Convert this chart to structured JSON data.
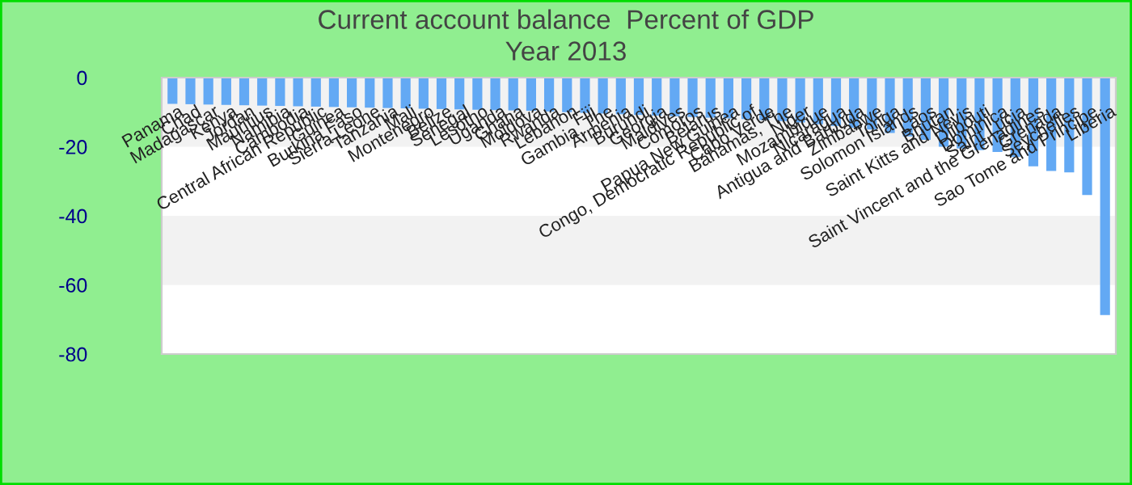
{
  "chart_data": {
    "type": "bar",
    "title": "Current account balance  Percent of GDP",
    "subtitle": "Year 2013",
    "categories": [
      "Panama",
      "Chad",
      "Madagascar",
      "Kenya",
      "Jordan",
      "Mauritius",
      "Namibia",
      "Cambodia",
      "Central African Republic",
      "Guinea",
      "Burkina Faso",
      "Sierra Leone",
      "Tanzania",
      "Mali",
      "Montenegro",
      "Belize",
      "Senegal",
      "Lesotho",
      "Uganda",
      "Ghana",
      "Moldova",
      "Rwanda",
      "Lebanon",
      "Fiji",
      "Gambia, The",
      "Armenia",
      "Burundi",
      "Georgia",
      "Maldives",
      "Comoros",
      "Belarus",
      "Papua New Guinea",
      "Congo, Democratic Republic of",
      "Cabo Verde",
      "Bahamas, The",
      "Niger",
      "Mozambique",
      "Nicaragua",
      "Antigua and Barbuda",
      "Zimbabwe",
      "Tonga",
      "Solomon Islands",
      "Laos",
      "Bhutan",
      "Saint Kitts and Nevis",
      "Djibouti",
      "Dominica",
      "Saint Lucia",
      "Saint Vincent and the Grenadines",
      "Grenada",
      "Seychelles",
      "Sao Tome and Principe",
      "Liberia"
    ],
    "values": [
      -7.6,
      -7.7,
      -7.8,
      -7.9,
      -8.0,
      -8.1,
      -8.2,
      -8.3,
      -8.4,
      -8.5,
      -8.6,
      -8.7,
      -8.8,
      -8.9,
      -9.0,
      -9.1,
      -9.2,
      -9.3,
      -9.4,
      -9.5,
      -9.6,
      -9.8,
      -10,
      -10.2,
      -10.4,
      -10.6,
      -10.8,
      -11,
      -11.2,
      -11.4,
      -11.6,
      -11.8,
      -12,
      -12.3,
      -12.6,
      -13,
      -13.5,
      -14,
      -14.5,
      -15,
      -16,
      -17,
      -18,
      -20,
      -20.5,
      -21,
      -21.5,
      -23,
      -25.7,
      -27,
      -27.4,
      -34,
      -68.7
    ],
    "color": "#63a9f4",
    "ylim": [
      -80,
      0
    ],
    "yticks": [
      -80,
      -60,
      -40,
      -20,
      0
    ],
    "grid": false,
    "legend": false
  }
}
